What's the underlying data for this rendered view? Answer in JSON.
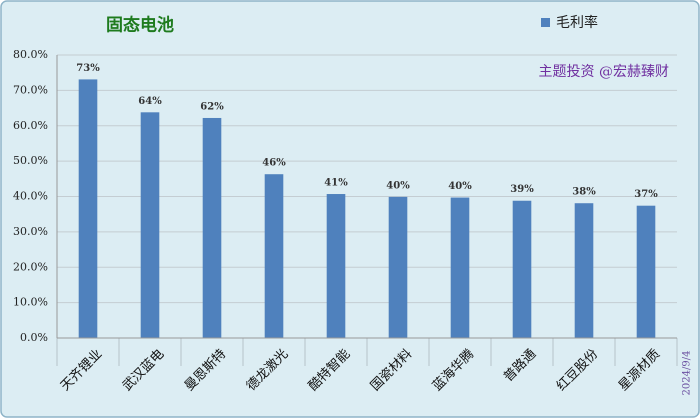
{
  "chart_data": {
    "type": "bar",
    "title": "固态电池",
    "annotation": "主题投资 @宏赫臻财",
    "date": "2024/9/4",
    "categories": [
      "天齐锂业",
      "武汉蓝电",
      "曼恩斯特",
      "德龙激光",
      "酷特智能",
      "国瓷材料",
      "蓝海华腾",
      "普路通",
      "红豆股份",
      "星源材质"
    ],
    "series": [
      {
        "name": "毛利率",
        "color": "#4f81bd",
        "values": [
          73.1,
          63.8,
          62.2,
          46.3,
          40.7,
          39.9,
          39.7,
          38.8,
          38.1,
          37.4
        ],
        "value_labels": [
          "73%",
          "64%",
          "62%",
          "46%",
          "41%",
          "40%",
          "40%",
          "39%",
          "38%",
          "37%"
        ]
      }
    ],
    "ylim": [
      0,
      80
    ],
    "yticks": [
      {
        "value": 0,
        "label": "0.0%"
      },
      {
        "value": 10,
        "label": "10.0%"
      },
      {
        "value": 20,
        "label": "20.0%"
      },
      {
        "value": 30,
        "label": "30.0%"
      },
      {
        "value": 40,
        "label": "40.0%"
      },
      {
        "value": 50,
        "label": "50.0%"
      },
      {
        "value": 60,
        "label": "60.0%"
      },
      {
        "value": 70,
        "label": "70.0%"
      },
      {
        "value": 80,
        "label": "80.0%"
      }
    ],
    "grid": true
  }
}
